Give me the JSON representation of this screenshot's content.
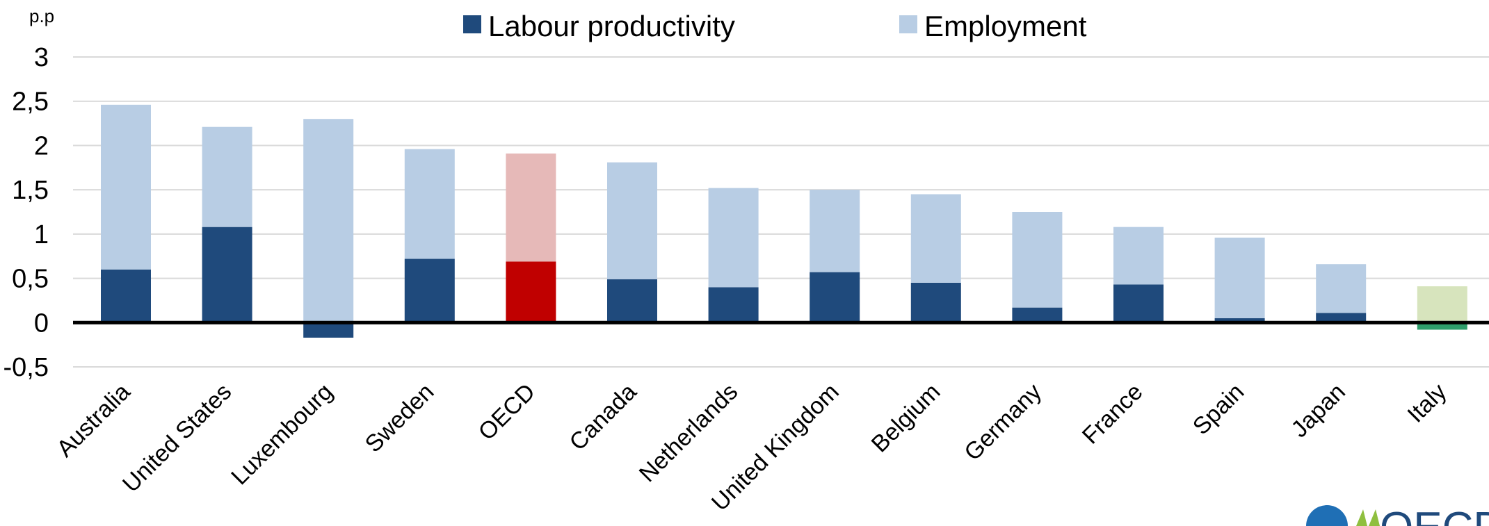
{
  "chart_data": {
    "type": "bar",
    "stacked": true,
    "ylabel": "p.p",
    "ylim": [
      -0.5,
      3
    ],
    "yticks": [
      3,
      2.5,
      2,
      1.5,
      1,
      0.5,
      0,
      -0.5
    ],
    "ytick_labels": [
      "3",
      "2,5",
      "2",
      "1,5",
      "1",
      "0,5",
      "0",
      "-0,5"
    ],
    "grid": true,
    "legend_position": "top",
    "categories": [
      "Australia",
      "United States",
      "Luxembourg",
      "Sweden",
      "OECD",
      "Canada",
      "Netherlands",
      "United Kingdom",
      "Belgium",
      "Germany",
      "France",
      "Spain",
      "Japan",
      "Italy"
    ],
    "series": [
      {
        "name": "Labour productivity",
        "color": "#1f4a7c",
        "values": [
          0.6,
          1.08,
          -0.17,
          0.72,
          0.69,
          0.49,
          0.4,
          0.57,
          0.45,
          0.17,
          0.43,
          0.05,
          0.11,
          -0.08
        ]
      },
      {
        "name": "Employment",
        "color": "#b8cde4",
        "values": [
          1.86,
          1.13,
          2.3,
          1.24,
          1.22,
          1.32,
          1.12,
          0.93,
          1.0,
          1.08,
          0.65,
          0.91,
          0.55,
          0.41
        ]
      }
    ],
    "highlights": {
      "OECD": {
        "Labour productivity": "#c00000",
        "Employment": "#e6b9b8"
      },
      "Italy": {
        "Labour productivity": "#2e9e6b",
        "Employment": "#d7e4bd"
      }
    }
  },
  "logo": {
    "text": "OECD",
    "icon": "oecd-logo-icon"
  }
}
